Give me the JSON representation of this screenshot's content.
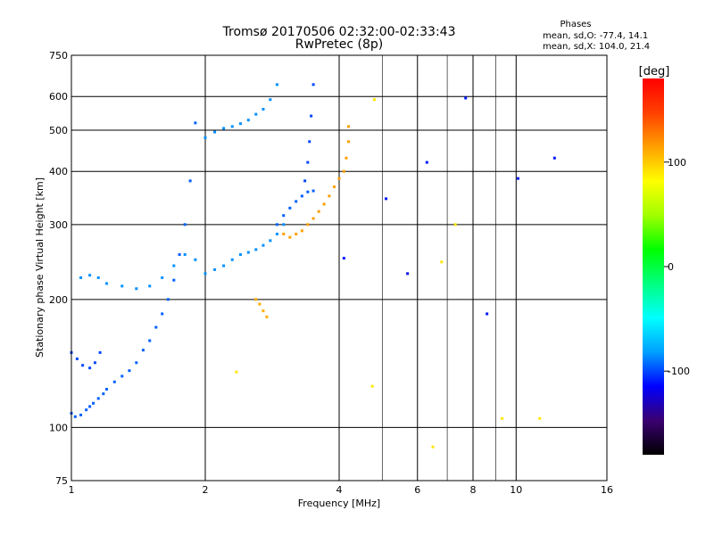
{
  "chart_data": {
    "type": "scatter",
    "title": "Tromsø 20170506 02:32:00-02:33:43",
    "subtitle": "RwPretec (8p)",
    "phase_header": "Phases",
    "phase_stats": [
      "mean, sd,O: -77.4, 14.1",
      "mean, sd,X: 104.0, 21.4"
    ],
    "xlabel": "Frequency [MHz]",
    "ylabel": "Stationary phase Virtual Height [km]",
    "xscale": "log",
    "yscale": "log",
    "xlim": [
      1,
      16
    ],
    "ylim": [
      75,
      750
    ],
    "x_ticks": [
      1,
      2,
      4,
      6,
      8,
      10,
      16
    ],
    "x_grid": [
      2,
      4,
      6,
      8,
      10
    ],
    "x_grid_light": [
      5,
      7,
      9
    ],
    "y_ticks": [
      75,
      100,
      200,
      300,
      400,
      500,
      600,
      750
    ],
    "y_grid": [
      100,
      200,
      300,
      400,
      500,
      600
    ],
    "grid": true,
    "colorbar": {
      "label": "[deg]",
      "range": [
        -180,
        180
      ],
      "ticks": [
        -100,
        0,
        100
      ],
      "colors": [
        "#000000",
        "#3a0070",
        "#0000ff",
        "#00a0ff",
        "#00ffff",
        "#00ff80",
        "#00ff00",
        "#a0ff00",
        "#ffff00",
        "#ffa000",
        "#ff4000",
        "#ff0000"
      ]
    },
    "series": [
      {
        "x": [
          1.0,
          1.02,
          1.05,
          1.08,
          1.1,
          1.12,
          1.15,
          1.18,
          1.2,
          1.25,
          1.3,
          1.35,
          1.4,
          1.45,
          1.5,
          1.55,
          1.6,
          1.65,
          1.7,
          1.75,
          1.8,
          1.85,
          1.9
        ],
        "y": [
          108,
          106,
          107,
          110,
          112,
          114,
          117,
          120,
          123,
          128,
          132,
          136,
          142,
          152,
          160,
          172,
          185,
          200,
          222,
          255,
          300,
          380,
          520
        ],
        "phase": -95
      },
      {
        "x": [
          1.0,
          1.03,
          1.06,
          1.1,
          1.13,
          1.16
        ],
        "y": [
          150,
          145,
          140,
          138,
          142,
          150
        ],
        "phase": -100
      },
      {
        "x": [
          1.05,
          1.1,
          1.15,
          1.2,
          1.3,
          1.4,
          1.5,
          1.6,
          1.7,
          1.8,
          1.9,
          2.0,
          2.1,
          2.2,
          2.3,
          2.4,
          2.5,
          2.6,
          2.7,
          2.8,
          2.9,
          3.0
        ],
        "y": [
          225,
          228,
          225,
          218,
          215,
          212,
          215,
          225,
          240,
          255,
          248,
          230,
          235,
          240,
          248,
          255,
          258,
          262,
          268,
          275,
          285,
          300
        ],
        "phase": -85
      },
      {
        "x": [
          2.0,
          2.1,
          2.2,
          2.3,
          2.4,
          2.5,
          2.6,
          2.7,
          2.8,
          2.9
        ],
        "y": [
          480,
          495,
          505,
          510,
          518,
          528,
          545,
          560,
          590,
          640
        ],
        "phase": -85
      },
      {
        "x": [
          2.9,
          3.0,
          3.1,
          3.2,
          3.3,
          3.4,
          3.5
        ],
        "y": [
          300,
          315,
          328,
          340,
          350,
          358,
          360
        ],
        "phase": -95
      },
      {
        "x": [
          3.35,
          3.4,
          3.43,
          3.46,
          3.5
        ],
        "y": [
          380,
          420,
          470,
          540,
          640
        ],
        "phase": -100
      },
      {
        "x": [
          3.0,
          3.1,
          3.2,
          3.3,
          3.4,
          3.5,
          3.6,
          3.7,
          3.8,
          3.9,
          4.0,
          4.1,
          4.15,
          4.2,
          4.2
        ],
        "y": [
          285,
          280,
          285,
          290,
          300,
          310,
          322,
          335,
          350,
          368,
          385,
          400,
          430,
          470,
          510
        ],
        "phase": 115
      },
      {
        "x": [
          2.6,
          2.65,
          2.7,
          2.75
        ],
        "y": [
          200,
          195,
          188,
          182
        ],
        "phase": 110
      },
      {
        "x": [
          2.35,
          4.75,
          6.5,
          7.3,
          9.3,
          11.3,
          4.8,
          5.7,
          6.8
        ],
        "y": [
          135,
          125,
          90,
          300,
          105,
          105,
          590,
          230,
          245
        ],
        "phase": 90
      },
      {
        "x": [
          4.1,
          5.1,
          5.7,
          6.3,
          7.7,
          8.6,
          10.1,
          12.2
        ],
        "y": [
          250,
          345,
          230,
          420,
          595,
          185,
          385,
          430
        ],
        "phase": -110
      }
    ]
  }
}
